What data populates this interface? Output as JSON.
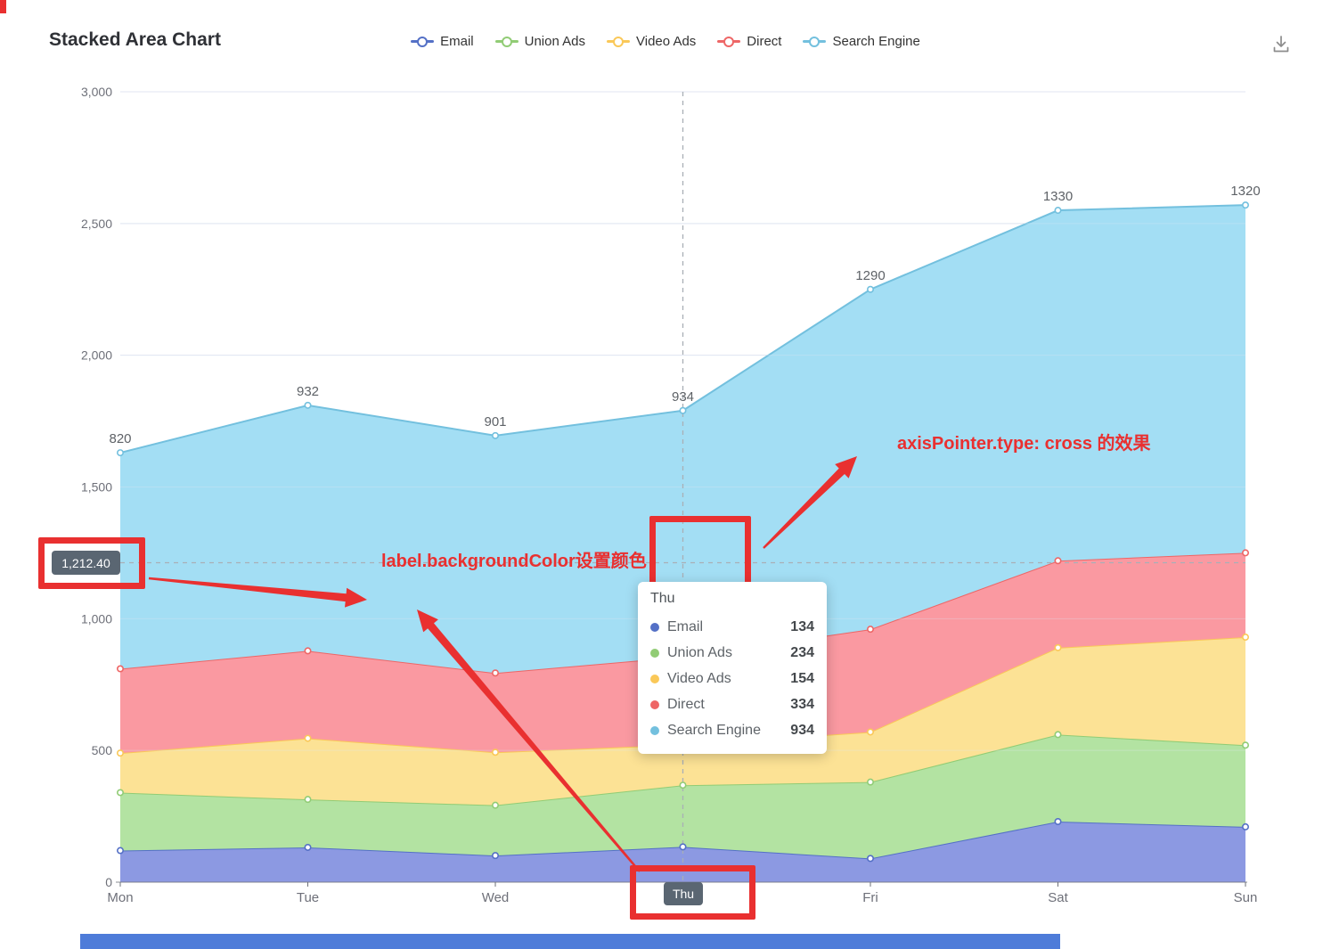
{
  "header": {
    "title": "Stacked Area Chart"
  },
  "icons": {
    "download": "download-icon"
  },
  "chart_data": {
    "type": "area",
    "stacked": true,
    "title": "Stacked Area Chart",
    "x_categories": [
      "Mon",
      "Tue",
      "Wed",
      "Thu",
      "Fri",
      "Sat",
      "Sun"
    ],
    "series": [
      {
        "name": "Email",
        "color": "#5470C6",
        "area_color": "#8C99E2",
        "values": [
          120,
          132,
          101,
          134,
          90,
          230,
          210
        ]
      },
      {
        "name": "Union Ads",
        "color": "#91CC75",
        "area_color": "#B3E3A2",
        "values": [
          220,
          182,
          191,
          234,
          290,
          330,
          310
        ]
      },
      {
        "name": "Video Ads",
        "color": "#FAC858",
        "area_color": "#FCE295",
        "values": [
          150,
          232,
          201,
          154,
          190,
          330,
          410
        ]
      },
      {
        "name": "Direct",
        "color": "#EE6666",
        "area_color": "#FA99A1",
        "values": [
          320,
          332,
          301,
          334,
          390,
          330,
          320
        ]
      },
      {
        "name": "Search Engine",
        "color": "#73C0DE",
        "area_color": "#A3DEF4",
        "values": [
          820,
          932,
          901,
          934,
          1290,
          1330,
          1320
        ]
      }
    ],
    "point_labels": [
      "820",
      "932",
      "901",
      "934",
      "1290",
      "1330",
      "1320"
    ],
    "labeled_series": "Search Engine",
    "ylim": [
      0,
      3000
    ],
    "y_tick_labels": [
      "0",
      "500",
      "1,000",
      "1,500",
      "2,000",
      "2,500",
      "3,000"
    ],
    "grid": true,
    "legend_position": "top",
    "axis_text_color": "#6E7079",
    "grid_color": "#E0E6F1",
    "point_label_color": "#5e6267"
  },
  "tooltip": {
    "title": "Thu",
    "rows": [
      {
        "name": "Email",
        "value": "134",
        "color": "#5470C6"
      },
      {
        "name": "Union Ads",
        "value": "234",
        "color": "#91CC75"
      },
      {
        "name": "Video Ads",
        "value": "154",
        "color": "#FAC858"
      },
      {
        "name": "Direct",
        "value": "334",
        "color": "#EE6666"
      },
      {
        "name": "Search Engine",
        "value": "934",
        "color": "#73C0DE"
      }
    ]
  },
  "axis_pointer": {
    "type": "cross",
    "y_label": "1,212.40",
    "x_label": "Thu",
    "label_background": "#5A6672",
    "category": "Thu",
    "y_value": 1212.4,
    "line_color": "#A9AFB6"
  },
  "annotations": {
    "color": "#E93030",
    "cross_note": "axisPointer.type: cross 的效果",
    "label_note": "label.backgroundColor设置颜色"
  }
}
